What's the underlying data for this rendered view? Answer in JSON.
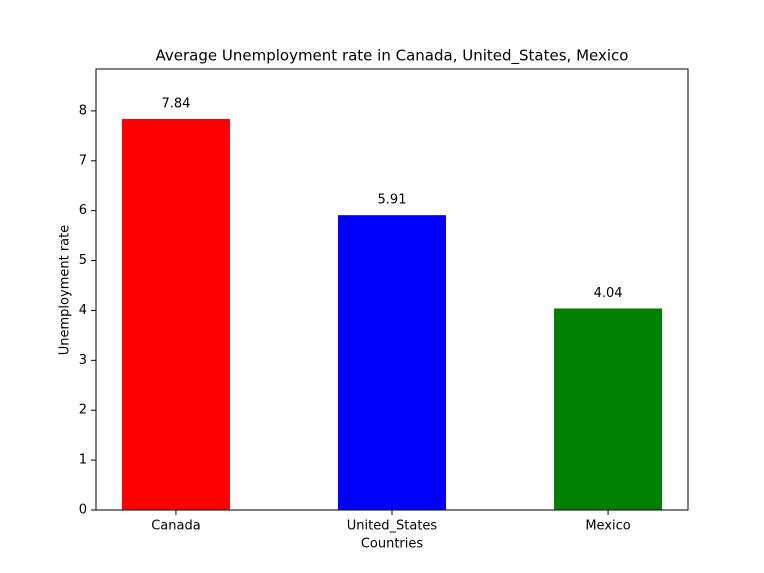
{
  "chart_data": {
    "type": "bar",
    "title": "Average Unemployment rate in Canada, United_States, Mexico",
    "x_label": "Countries",
    "y_label": "Unemployment rate",
    "categories": [
      "Canada",
      "United_States",
      "Mexico"
    ],
    "values": [
      7.84,
      5.91,
      4.04
    ],
    "colors": [
      "#ff0000",
      "#0000ff",
      "#008000"
    ],
    "ylim": [
      0,
      8.84
    ],
    "yticks": [
      0,
      1,
      2,
      3,
      4,
      5,
      6,
      7,
      8
    ],
    "grid": false
  }
}
